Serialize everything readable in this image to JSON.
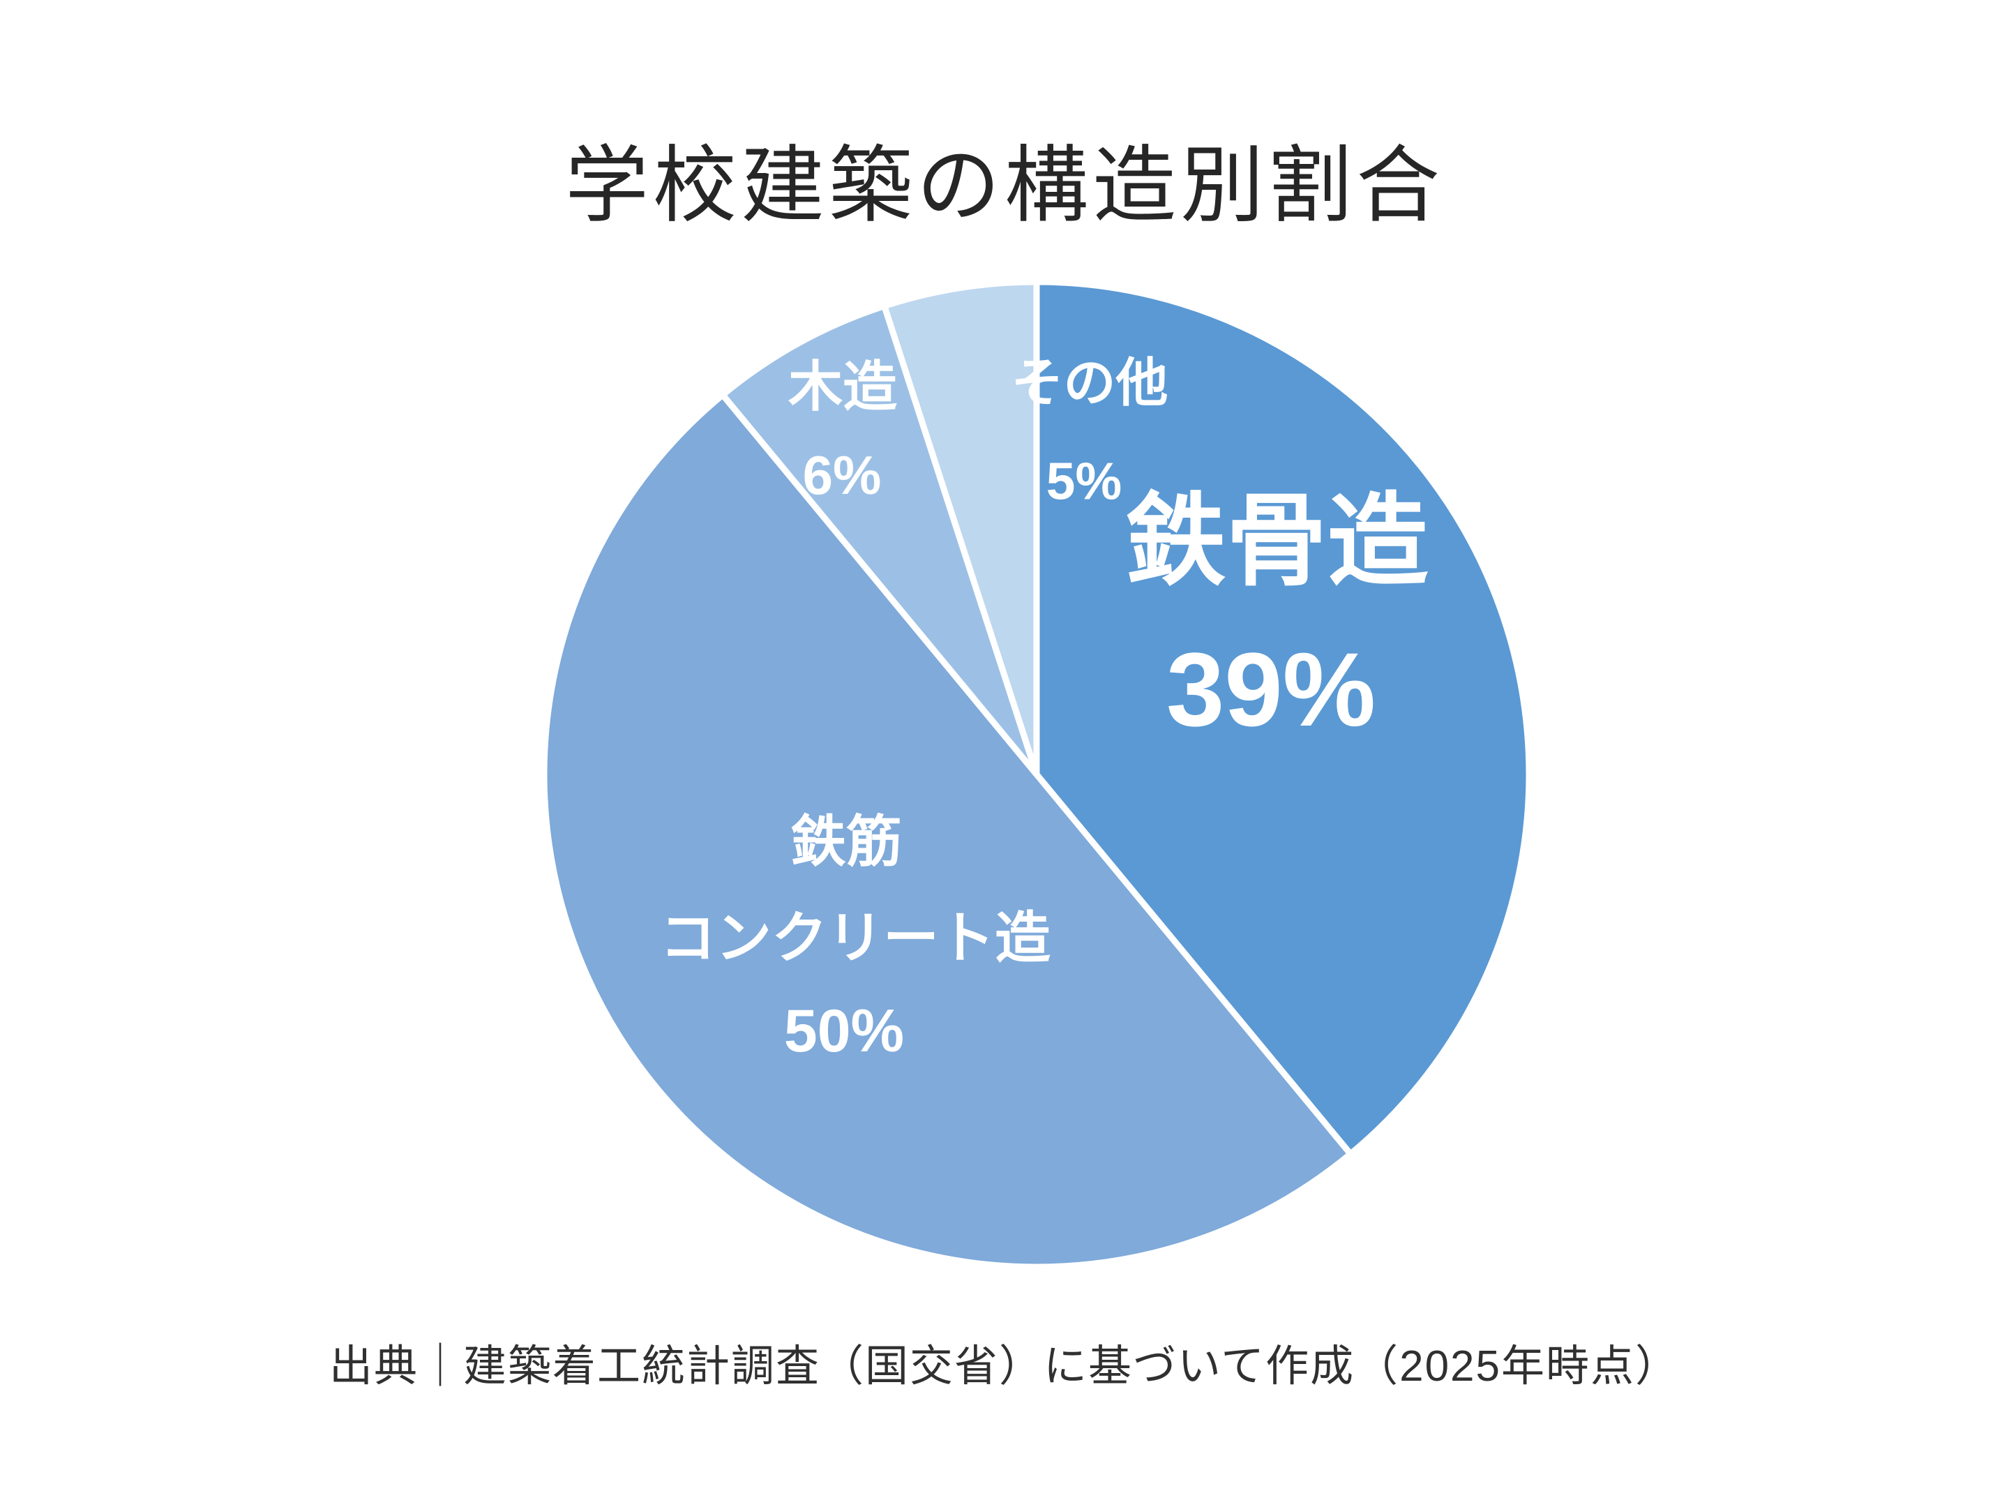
{
  "page": {
    "title": "学校建築の構造別割合",
    "source": "出典｜建築着工統計調査（国交省）に基づいて作成（2025年時点）",
    "background_color": "#FFFFFF",
    "title_color": "#262626",
    "label_text_color": "#FFFFFF"
  },
  "chart_data": {
    "type": "pie",
    "title": "学校建築の構造別割合",
    "start_angle_deg": 0,
    "direction": "clockwise",
    "legend_position": "none",
    "labels_inside": true,
    "slice_border_color": "#FFFFFF",
    "segments": [
      {
        "name": "鉄骨造",
        "name_lines": [
          "鉄骨造"
        ],
        "value": 39,
        "pct_label": "39%",
        "color": "#5A99D4"
      },
      {
        "name": "鉄筋コンクリート造",
        "name_lines": [
          "鉄筋",
          "コンクリート造"
        ],
        "value": 50,
        "pct_label": "50%",
        "color": "#7FAADA"
      },
      {
        "name": "木造",
        "name_lines": [
          "木造"
        ],
        "value": 6,
        "pct_label": "6%",
        "color": "#9CC0E5"
      },
      {
        "name": "その他",
        "name_lines": [
          "その他"
        ],
        "value": 5,
        "pct_label": "5%",
        "color": "#BDD7EF"
      }
    ]
  }
}
